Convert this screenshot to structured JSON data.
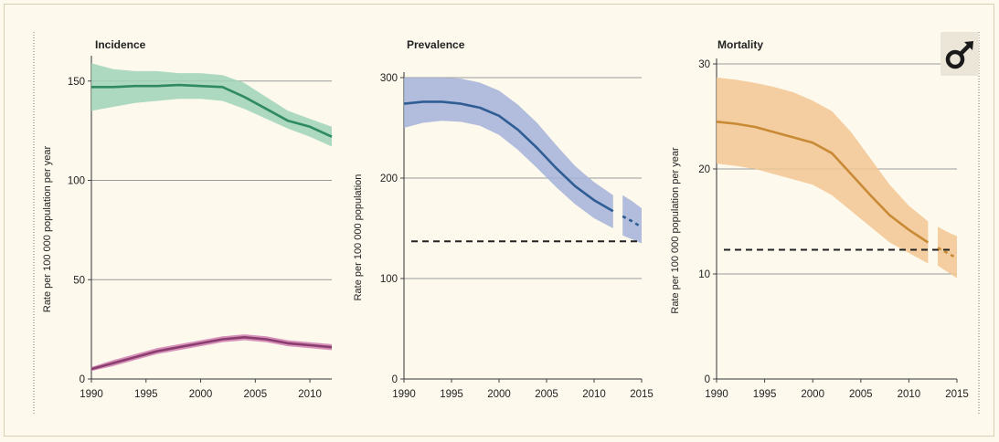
{
  "colors": {
    "incidence_band": "#9fd3b8",
    "incidence_line": "#2f8a62",
    "hiv_band": "#d07fb0",
    "hiv_line": "#8a3e6e",
    "prevalence_band": "#a4b3d9",
    "prevalence_line": "#2f5d94",
    "mortality_band": "#f2c792",
    "mortality_line": "#c98a36",
    "target_line": "#222222",
    "grid": "#9a9a9a"
  },
  "logo_icon": "male-symbol-icon",
  "chart_data": [
    {
      "type": "area",
      "title": "Incidence",
      "ylabel": "Rate per 100 000 population per year",
      "xlabel": "",
      "xlim": [
        1990,
        2012
      ],
      "ylim": [
        0,
        160
      ],
      "x_ticks": [
        "1990",
        "1995",
        "2000",
        "2005",
        "2010"
      ],
      "y_ticks": [
        "0",
        "50",
        "100",
        "150"
      ],
      "grid": "horizontal",
      "series": [
        {
          "color": "incidence",
          "x": [
            1990,
            1992,
            1994,
            1996,
            1998,
            2000,
            2002,
            2004,
            2006,
            2008,
            2010,
            2012
          ],
          "y": [
            147,
            147,
            147.5,
            147.5,
            148,
            147.5,
            147,
            142,
            136,
            130,
            127,
            122
          ],
          "lower": [
            135,
            137,
            139,
            140,
            141,
            141,
            140,
            136,
            131,
            126,
            122,
            117
          ],
          "upper": [
            159,
            156,
            155,
            155,
            154,
            154,
            153,
            149,
            142,
            135,
            131,
            127
          ]
        },
        {
          "color": "hiv",
          "x": [
            1990,
            1992,
            1994,
            1996,
            1998,
            2000,
            2002,
            2004,
            2006,
            2008,
            2010,
            2012
          ],
          "y": [
            5,
            8,
            11,
            14,
            16,
            18,
            20,
            21,
            20,
            18,
            17,
            16
          ],
          "lower": [
            4,
            6.5,
            9.5,
            12.5,
            14.5,
            16.5,
            18.5,
            19.5,
            18.5,
            16.5,
            15.5,
            14.5
          ],
          "upper": [
            6,
            9.5,
            12.5,
            15.5,
            17.5,
            19.5,
            21.5,
            22.5,
            21.5,
            19.5,
            18.5,
            17.5
          ]
        }
      ]
    },
    {
      "type": "area",
      "title": "Prevalence",
      "ylabel": "Rate per 100 000 population",
      "xlabel": "",
      "xlim": [
        1990,
        2015
      ],
      "ylim": [
        0,
        300
      ],
      "x_ticks": [
        "1990",
        "1995",
        "2000",
        "2005",
        "2010",
        "2015"
      ],
      "y_ticks": [
        "0",
        "100",
        "200",
        "300"
      ],
      "grid": "horizontal",
      "target": 137,
      "series": [
        {
          "color": "prevalence",
          "x": [
            1990,
            1992,
            1994,
            1996,
            1998,
            2000,
            2002,
            2004,
            2006,
            2008,
            2010,
            2012
          ],
          "y": [
            274,
            276,
            276,
            274,
            270,
            262,
            248,
            230,
            210,
            192,
            178,
            167
          ],
          "lower": [
            250,
            255,
            257,
            256,
            252,
            243,
            228,
            210,
            191,
            174,
            160,
            150
          ],
          "upper": [
            300,
            300,
            300,
            299,
            295,
            287,
            273,
            255,
            233,
            212,
            196,
            183
          ]
        },
        {
          "color": "prevalence",
          "projection": true,
          "x": [
            2013,
            2014,
            2015
          ],
          "y": [
            162,
            157,
            151
          ],
          "lower": [
            143,
            139,
            135
          ],
          "upper": [
            183,
            177,
            170
          ]
        }
      ]
    },
    {
      "type": "area",
      "title": "Mortality",
      "ylabel": "Rate per 100 000 population per year",
      "xlabel": "",
      "xlim": [
        1990,
        2015
      ],
      "ylim": [
        0,
        30
      ],
      "x_ticks": [
        "1990",
        "1995",
        "2000",
        "2005",
        "2010",
        "2015"
      ],
      "y_ticks": [
        "0",
        "10",
        "20",
        "30"
      ],
      "grid": "horizontal",
      "target": 12.3,
      "series": [
        {
          "color": "mortality",
          "x": [
            1990,
            1992,
            1994,
            1996,
            1998,
            2000,
            2002,
            2004,
            2006,
            2008,
            2010,
            2012
          ],
          "y": [
            24.5,
            24.3,
            24,
            23.5,
            23,
            22.5,
            21.5,
            19.5,
            17.5,
            15.6,
            14.2,
            13
          ],
          "lower": [
            20.5,
            20.3,
            20,
            19.5,
            19,
            18.5,
            17.5,
            16,
            14.5,
            13,
            12,
            11
          ],
          "upper": [
            28.7,
            28.5,
            28.2,
            27.8,
            27.3,
            26.5,
            25.5,
            23.5,
            21,
            18.5,
            16.5,
            15
          ]
        },
        {
          "color": "mortality",
          "projection": true,
          "x": [
            2013,
            2014,
            2015
          ],
          "y": [
            12.5,
            12,
            11.5
          ],
          "lower": [
            10.8,
            10.2,
            9.6
          ],
          "upper": [
            14.5,
            14,
            13.6
          ]
        }
      ]
    }
  ]
}
